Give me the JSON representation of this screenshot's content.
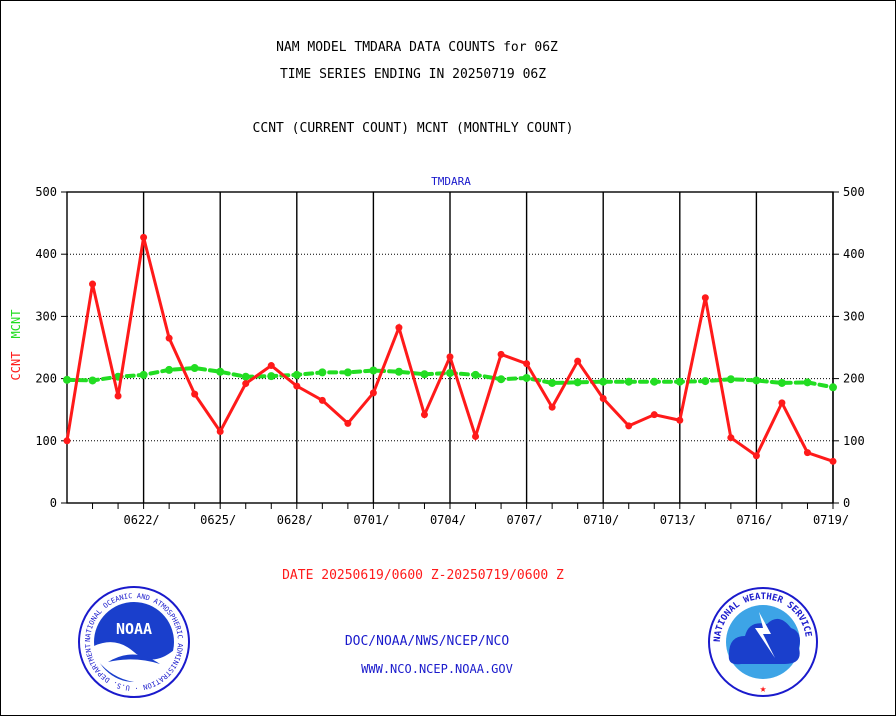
{
  "header": {
    "title_line1": "NAM MODEL TMDARA DATA COUNTS for 06Z",
    "title_line2": "TIME SERIES ENDING IN 20250719 06Z",
    "subtitle": "CCNT (CURRENT COUNT) MCNT (MONTHLY COUNT)"
  },
  "footer": {
    "date_range": "DATE 20250619/0600 Z-20250719/0600 Z",
    "org_line": "DOC/NOAA/NWS/NCEP/NCO",
    "url_line": "WWW.NCO.NCEP.NOAA.GOV"
  },
  "logos": {
    "noaa": {
      "center_text": "NOAA",
      "ring_text": "NATIONAL OCEANIC AND ATMOSPHERIC ADMINISTRATION · U.S. DEPARTMENT OF COMMERCE"
    },
    "nws": {
      "ring_text": "NATIONAL WEATHER SERVICE"
    }
  },
  "colors": {
    "ccnt": "#ff1a1a",
    "mcnt": "#22dd22",
    "title": "#000000",
    "panel_label": "#1a1acc",
    "footer_red": "#ff1a1a",
    "footer_blue": "#1a1acc"
  },
  "chart_data": {
    "type": "line",
    "title": "TMDARA",
    "ylabel_ccnt": "CCNT",
    "ylabel_mcnt": "MCNT",
    "ylim": [
      0,
      500
    ],
    "xlim": [
      0,
      30
    ],
    "y_ticks": [
      0,
      100,
      200,
      300,
      400,
      500
    ],
    "x_tick_labels": [
      "0622/",
      "0625/",
      "0628/",
      "0701/",
      "0704/",
      "0707/",
      "0710/",
      "0713/",
      "0716/",
      "0719/"
    ],
    "x_tick_positions": [
      3,
      6,
      9,
      12,
      15,
      18,
      21,
      24,
      27,
      30
    ],
    "grid": true,
    "series": [
      {
        "name": "CCNT",
        "style": "solid",
        "values": [
          100,
          352,
          172,
          427,
          265,
          175,
          115,
          192,
          221,
          188,
          165,
          128,
          177,
          282,
          142,
          235,
          107,
          239,
          224,
          154,
          228,
          168,
          124,
          142,
          133,
          330,
          105,
          76,
          161,
          81,
          67
        ]
      },
      {
        "name": "MCNT",
        "style": "dashed",
        "values": [
          198,
          197,
          203,
          206,
          214,
          217,
          211,
          203,
          204,
          206,
          210,
          210,
          213,
          211,
          207,
          209,
          206,
          199,
          201,
          193,
          194,
          195,
          195,
          195,
          195,
          196,
          199,
          197,
          193,
          194,
          186
        ]
      }
    ]
  }
}
